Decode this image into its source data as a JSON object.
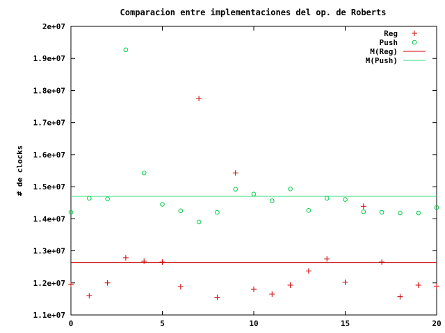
{
  "chart_data": {
    "type": "scatter",
    "title": "Comparacion entre implementaciones del op. de Roberts",
    "xlabel": "",
    "ylabel": "# de clocks",
    "xlim": [
      0,
      20
    ],
    "ylim": [
      11000000,
      20000000
    ],
    "xticks": [
      "0",
      "5",
      "10",
      "15",
      "20"
    ],
    "xtick_values": [
      0,
      5,
      10,
      15,
      20
    ],
    "yticks": [
      "1.1e+07",
      "1.2e+07",
      "1.3e+07",
      "1.4e+07",
      "1.5e+07",
      "1.6e+07",
      "1.7e+07",
      "1.8e+07",
      "1.9e+07",
      "2e+07"
    ],
    "ytick_values": [
      11000000,
      12000000,
      13000000,
      14000000,
      15000000,
      16000000,
      17000000,
      18000000,
      19000000,
      20000000
    ],
    "legend_position": "top-right",
    "series": [
      {
        "name": "Reg",
        "marker": "plus",
        "color": "#cc0000",
        "x": [
          0,
          1,
          2,
          3,
          4,
          5,
          6,
          7,
          8,
          9,
          10,
          11,
          12,
          13,
          14,
          15,
          16,
          17,
          18,
          19,
          20
        ],
        "y": [
          11950000,
          11600000,
          12000000,
          12780000,
          12680000,
          12650000,
          11880000,
          17750000,
          11550000,
          15430000,
          11800000,
          11650000,
          11930000,
          12370000,
          12750000,
          12020000,
          14390000,
          12650000,
          11570000,
          11930000,
          11900000
        ]
      },
      {
        "name": "Push",
        "marker": "circle",
        "color": "#00cc44",
        "x": [
          0,
          1,
          2,
          3,
          4,
          5,
          6,
          7,
          8,
          9,
          10,
          11,
          12,
          13,
          14,
          15,
          16,
          17,
          18,
          19,
          20
        ],
        "y": [
          14200000,
          14640000,
          14620000,
          19270000,
          15430000,
          14450000,
          14250000,
          13900000,
          14200000,
          14920000,
          14770000,
          14560000,
          14930000,
          14260000,
          14640000,
          14600000,
          14220000,
          14200000,
          14180000,
          14180000,
          14350000
        ]
      },
      {
        "name": "M(Reg)",
        "type": "hline",
        "color": "#cc0000",
        "value": 12630000
      },
      {
        "name": "M(Push)",
        "type": "hline",
        "color": "#33dd77",
        "value": 14700000
      }
    ]
  }
}
